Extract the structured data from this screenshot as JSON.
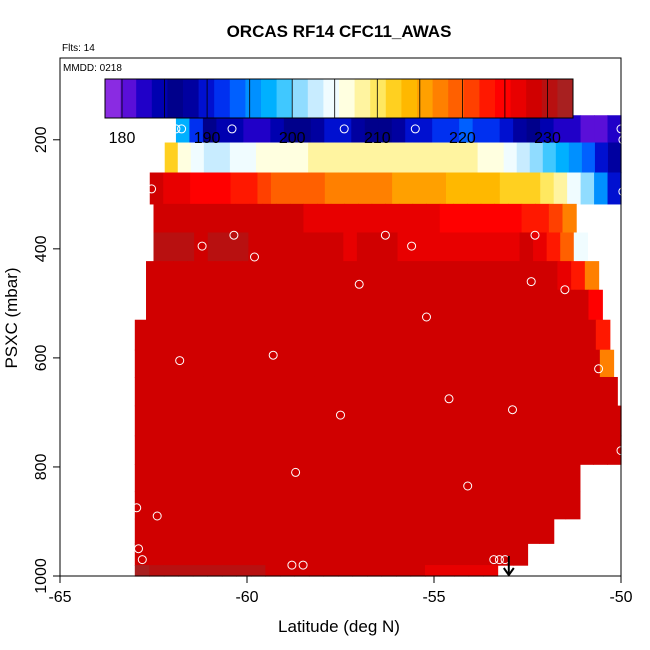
{
  "chart_data": {
    "type": "heatmap",
    "title": "ORCAS RF14 CFC11_AWAS",
    "flights_label": "Flts: 14",
    "date_label": "MMDD: 0218",
    "xlabel": "Latitude (deg N)",
    "ylabel": "PSXC (mbar)",
    "xlim": [
      -65,
      -50
    ],
    "ylim": [
      1000,
      50
    ],
    "y_reversed": true,
    "x_ticks": [
      -65,
      -60,
      -55,
      -50
    ],
    "x_tick_labels": [
      "-65",
      "-60",
      "-55",
      "-50"
    ],
    "y_ticks": [
      200,
      400,
      600,
      800,
      1000
    ],
    "y_tick_labels": [
      "200",
      "400",
      "600",
      "800",
      "1000"
    ],
    "colorbar": {
      "min": 178,
      "max": 233,
      "ticks": [
        180,
        190,
        200,
        210,
        220,
        230
      ],
      "tick_labels": [
        "180",
        "190",
        "200",
        "210",
        "220",
        "230"
      ],
      "colors": [
        "#8a2be2",
        "#5a0fd8",
        "#2000c8",
        "#0000b0",
        "#00008b",
        "#0000a0",
        "#0010d0",
        "#0030f0",
        "#0060ff",
        "#0090ff",
        "#00b0ff",
        "#40c8ff",
        "#90dcff",
        "#c8ecff",
        "#f0fcff",
        "#ffffe0",
        "#fff4a0",
        "#ffe860",
        "#ffd020",
        "#ffb800",
        "#ffa000",
        "#ff8000",
        "#ff6000",
        "#ff4000",
        "#ff1800",
        "#ff0000",
        "#e80000",
        "#d00000",
        "#b81010",
        "#a82020"
      ]
    },
    "rows": [
      {
        "p": 180,
        "x0": -61.9,
        "x1": -50,
        "values": [
          198,
          192,
          187,
          185,
          184,
          183,
          182,
          184,
          186,
          187,
          188,
          190,
          189,
          188,
          186,
          187,
          188,
          189,
          190,
          191,
          192,
          193,
          192,
          191,
          190,
          188,
          186,
          184,
          183,
          182,
          181,
          181,
          183
        ]
      },
      {
        "p": 230,
        "x0": -62.2,
        "x1": -50,
        "values": [
          212,
          207,
          204,
          203,
          203,
          204,
          205,
          206,
          206,
          207,
          207,
          208,
          208,
          208,
          208,
          208,
          208,
          209,
          209,
          209,
          209,
          209,
          208,
          208,
          207,
          206,
          205,
          203,
          201,
          199,
          197,
          195,
          193,
          190,
          188
        ]
      },
      {
        "p": 290,
        "x0": -62.6,
        "x1": -50,
        "values": [
          228,
          227,
          226,
          225,
          224,
          224,
          223,
          222,
          221,
          220,
          220,
          219,
          219,
          218,
          218,
          218,
          217,
          217,
          216,
          216,
          215,
          215,
          214,
          214,
          213,
          213,
          212,
          212,
          211,
          210,
          208,
          205,
          200,
          195,
          190
        ]
      },
      {
        "p": 345,
        "x0": -62.5,
        "x1": -51.2,
        "values": [
          228,
          229,
          228,
          229,
          229,
          228,
          228,
          229,
          228,
          228,
          228,
          227,
          227,
          227,
          227,
          227,
          227,
          226,
          226,
          226,
          226,
          225,
          225,
          225,
          225,
          224,
          224,
          223,
          222,
          221,
          218
        ]
      },
      {
        "p": 395,
        "x0": -62.5,
        "x1": -50.9,
        "values": [
          231,
          230,
          231,
          229,
          230,
          231,
          230,
          229,
          228,
          228,
          229,
          229,
          229,
          228,
          227,
          228,
          228,
          228,
          227,
          227,
          227,
          227,
          227,
          227,
          226,
          226,
          227,
          228,
          226,
          223,
          219,
          205
        ]
      },
      {
        "p": 450,
        "x0": -62.7,
        "x1": -50.6,
        "values": [
          229,
          229,
          229,
          229,
          229,
          229,
          228,
          228,
          228,
          228,
          228,
          228,
          228,
          228,
          228,
          228,
          228,
          228,
          228,
          228,
          228,
          228,
          228,
          228,
          228,
          228,
          228,
          228,
          228,
          228,
          226,
          222,
          217
        ]
      },
      {
        "p": 500,
        "x0": -62.7,
        "x1": -50.5,
        "values": [
          229,
          229,
          228,
          228,
          228,
          228,
          228,
          228,
          228,
          228,
          228,
          228,
          228,
          228,
          228,
          228,
          228,
          228,
          228,
          228,
          228,
          228,
          228,
          228,
          228,
          228,
          228,
          228,
          228,
          228,
          228,
          228,
          224
        ]
      },
      {
        "p": 560,
        "x0": -63.0,
        "x1": -50.3,
        "values": [
          228,
          228,
          228,
          228,
          228,
          228,
          228,
          228,
          228,
          228,
          228,
          228,
          228,
          228,
          228,
          228,
          228,
          228,
          228,
          228,
          228,
          228,
          228,
          228,
          228,
          228,
          228,
          228,
          228,
          228,
          228,
          228,
          228,
          222
        ]
      },
      {
        "p": 610,
        "x0": -63.0,
        "x1": -50.2,
        "values": [
          229,
          228,
          229,
          228,
          229,
          229,
          228,
          228,
          229,
          229,
          228,
          228,
          228,
          229,
          228,
          228,
          228,
          228,
          228,
          228,
          228,
          228,
          228,
          228,
          228,
          228,
          228,
          228,
          228,
          228,
          228,
          228,
          228,
          228,
          218
        ]
      },
      {
        "p": 660,
        "x0": -63.0,
        "x1": -50.1,
        "values": [
          229,
          229,
          229,
          229,
          229,
          229,
          229,
          229,
          229,
          229,
          229,
          228,
          228,
          228,
          228,
          228,
          228,
          228,
          228,
          228,
          229,
          229,
          229,
          229,
          229,
          228,
          228,
          228,
          228,
          228,
          228,
          228,
          228,
          228,
          228
        ]
      },
      {
        "p": 715,
        "x0": -63.0,
        "x1": -50.0,
        "values": [
          229,
          229,
          229,
          229,
          229,
          229,
          229,
          229,
          229,
          229,
          229,
          229,
          228,
          228,
          228,
          228,
          228,
          228,
          228,
          228,
          229,
          229,
          229,
          229,
          229,
          229,
          229,
          228,
          228,
          228,
          228,
          228,
          228,
          228,
          228
        ]
      },
      {
        "p": 770,
        "x0": -63.0,
        "x1": -50.0,
        "values": [
          229,
          229,
          229,
          229,
          229,
          229,
          229,
          229,
          229,
          229,
          229,
          229,
          229,
          229,
          229,
          229,
          229,
          228,
          228,
          228,
          228,
          228,
          228,
          228,
          228,
          228,
          228,
          228,
          228,
          228,
          228,
          228,
          228,
          228,
          228
        ]
      },
      {
        "p": 820,
        "x0": -63.0,
        "x1": -51.1,
        "values": [
          229,
          229,
          229,
          229,
          229,
          229,
          228,
          228,
          228,
          228,
          228,
          228,
          228,
          229,
          229,
          229,
          229,
          228,
          228,
          228,
          228,
          228,
          228,
          228,
          228,
          228,
          228,
          228,
          228,
          228,
          228
        ]
      },
      {
        "p": 870,
        "x0": -63.0,
        "x1": -51.1,
        "values": [
          229,
          229,
          229,
          229,
          229,
          229,
          228,
          228,
          228,
          228,
          228,
          228,
          228,
          228,
          228,
          228,
          228,
          228,
          228,
          228,
          228,
          228,
          228,
          228,
          228,
          228,
          228,
          228,
          228,
          228,
          228
        ]
      },
      {
        "p": 920,
        "x0": -63.0,
        "x1": -51.8,
        "values": [
          229,
          229,
          229,
          229,
          229,
          229,
          229,
          229,
          229,
          229,
          229,
          229,
          229,
          229,
          229,
          229,
          229,
          229,
          229,
          229,
          229,
          229,
          229,
          229,
          229,
          229,
          229,
          229,
          229
        ]
      },
      {
        "p": 960,
        "x0": -63.0,
        "x1": -52.5,
        "values": [
          229,
          229,
          229,
          229,
          229,
          229,
          229,
          229,
          229,
          229,
          229,
          229,
          229,
          229,
          229,
          229,
          229,
          229,
          229,
          229,
          229,
          229,
          229,
          229,
          229,
          229,
          229,
          229
        ]
      },
      {
        "p": 1000,
        "x0": -63.0,
        "x1": -53.3,
        "values": [
          232,
          231,
          231,
          230,
          230,
          230,
          230,
          230,
          230,
          229,
          229,
          229,
          229,
          229,
          229,
          229,
          228,
          228,
          228,
          228,
          227,
          227,
          227,
          227,
          227
        ]
      }
    ],
    "samples": [
      [
        -61.9,
        180
      ],
      [
        -61.75,
        180
      ],
      [
        -60.4,
        180
      ],
      [
        -57.4,
        180
      ],
      [
        -55.5,
        180
      ],
      [
        -50.0,
        180
      ],
      [
        -49.95,
        200
      ],
      [
        -49.95,
        295
      ],
      [
        -62.55,
        290
      ],
      [
        -60.35,
        375
      ],
      [
        -61.2,
        395
      ],
      [
        -59.8,
        415
      ],
      [
        -56.3,
        375
      ],
      [
        -55.6,
        395
      ],
      [
        -52.3,
        375
      ],
      [
        -57.0,
        465
      ],
      [
        -52.4,
        460
      ],
      [
        -51.5,
        475
      ],
      [
        -55.2,
        525
      ],
      [
        -62.95,
        515
      ],
      [
        -61.8,
        605
      ],
      [
        -59.3,
        595
      ],
      [
        -50.6,
        620
      ],
      [
        -57.5,
        705
      ],
      [
        -54.6,
        675
      ],
      [
        -52.9,
        695
      ],
      [
        -50.0,
        770
      ],
      [
        -58.7,
        810
      ],
      [
        -54.1,
        835
      ],
      [
        -62.95,
        875
      ],
      [
        -62.4,
        890
      ],
      [
        -62.9,
        950
      ],
      [
        -62.8,
        970
      ],
      [
        -58.8,
        980
      ],
      [
        -58.5,
        980
      ],
      [
        -53.4,
        970
      ],
      [
        -53.25,
        970
      ],
      [
        -53.1,
        970
      ]
    ],
    "marker": {
      "x": -53.0,
      "direction": "down"
    }
  }
}
